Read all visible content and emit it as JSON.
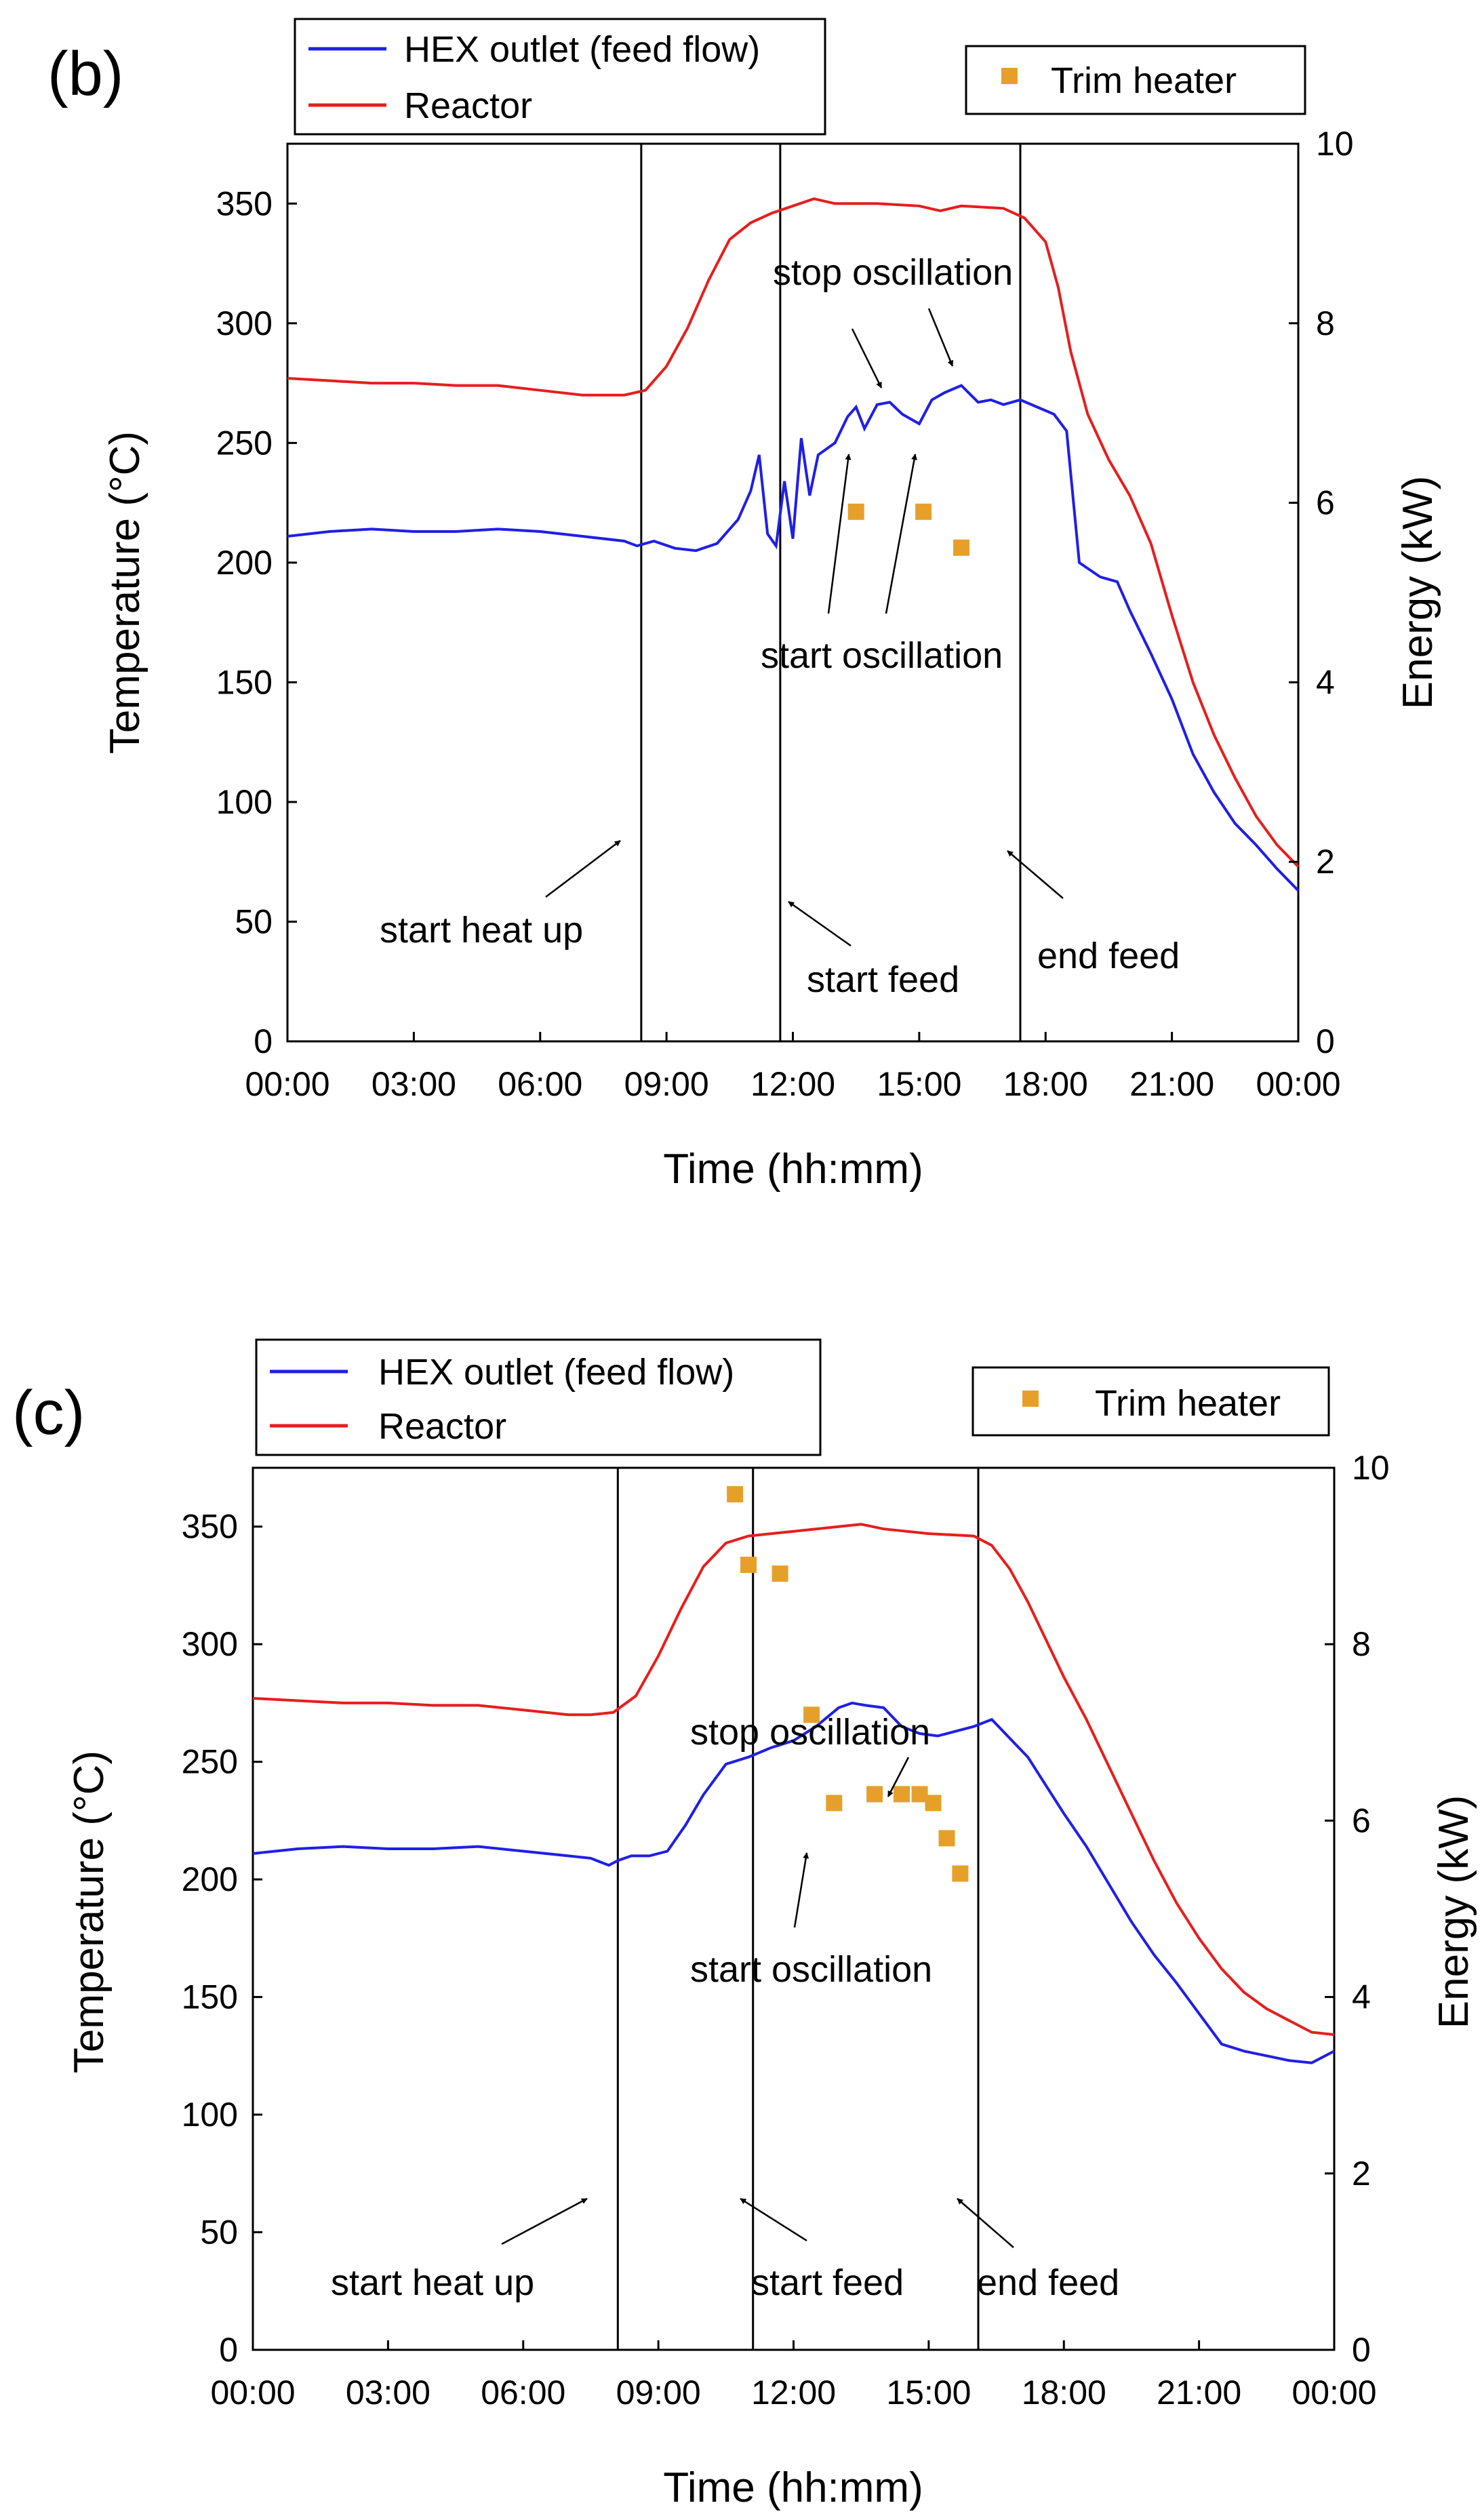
{
  "chart_data": [
    {
      "type": "line",
      "panel_label": "(b)",
      "xlabel": "Time (hh:mm)",
      "ylabel": "Temperature (°C)",
      "y2label": "Energy (kW)",
      "x_unit": "hours",
      "xlim": [
        0,
        24
      ],
      "x_tick_values": [
        0,
        3,
        6,
        9,
        12,
        15,
        18,
        21,
        24
      ],
      "x_tick_labels": [
        "00:00",
        "03:00",
        "06:00",
        "09:00",
        "12:00",
        "15:00",
        "18:00",
        "21:00",
        "00:00"
      ],
      "ylim": [
        0,
        375
      ],
      "y_tick_values": [
        0,
        50,
        100,
        150,
        200,
        250,
        300,
        350
      ],
      "y_tick_labels": [
        "0",
        "50",
        "100",
        "150",
        "200",
        "250",
        "300",
        "350"
      ],
      "y2lim": [
        0,
        10
      ],
      "y2_tick_values": [
        0,
        2,
        4,
        6,
        8,
        10
      ],
      "y2_tick_labels": [
        "0",
        "2",
        "4",
        "6",
        "8",
        "10"
      ],
      "grid": false,
      "legend_position": "top",
      "series": [
        {
          "name": "HEX outlet (feed flow)",
          "color": "#1f1fe6",
          "axis": "left",
          "x": [
            0,
            1,
            2,
            3,
            4,
            5,
            6,
            7,
            8,
            8.3,
            8.7,
            9.2,
            9.7,
            10.2,
            10.7,
            11.0,
            11.2,
            11.4,
            11.6,
            11.8,
            12.0,
            12.2,
            12.4,
            12.6,
            13.0,
            13.3,
            13.5,
            13.7,
            14.0,
            14.3,
            14.6,
            15.0,
            15.3,
            15.6,
            16.0,
            16.4,
            16.7,
            17.0,
            17.4,
            17.8,
            18.2,
            18.5,
            18.8,
            19.3,
            19.7,
            20.0,
            20.5,
            21.0,
            21.5,
            22.0,
            22.5,
            23.0,
            23.5,
            24.0
          ],
          "y": [
            211,
            213,
            214,
            213,
            213,
            214,
            213,
            211,
            209,
            207,
            209,
            206,
            205,
            208,
            218,
            230,
            245,
            212,
            207,
            234,
            210,
            252,
            228,
            245,
            250,
            261,
            265,
            256,
            266,
            267,
            262,
            258,
            268,
            271,
            274,
            267,
            268,
            266,
            268,
            265,
            262,
            255,
            200,
            194,
            192,
            180,
            162,
            143,
            120,
            104,
            91,
            82,
            72,
            63
          ]
        },
        {
          "name": "Reactor",
          "color": "#e61e1e",
          "axis": "left",
          "x": [
            0,
            1,
            2,
            3,
            4,
            5,
            6,
            7,
            8,
            8.5,
            9.0,
            9.5,
            10.0,
            10.5,
            11.0,
            11.5,
            12.0,
            12.5,
            13.0,
            14.0,
            15.0,
            15.5,
            16.0,
            17.0,
            17.5,
            18.0,
            18.3,
            18.6,
            19.0,
            19.5,
            20.0,
            20.5,
            21.0,
            21.5,
            22.0,
            22.5,
            23.0,
            23.5,
            24.0
          ],
          "y": [
            277,
            276,
            275,
            275,
            274,
            274,
            272,
            270,
            270,
            272,
            282,
            298,
            318,
            335,
            342,
            346,
            349,
            352,
            350,
            350,
            349,
            347,
            349,
            348,
            344,
            334,
            315,
            288,
            262,
            243,
            228,
            208,
            178,
            150,
            128,
            110,
            94,
            82,
            73
          ]
        },
        {
          "name": "Trim heater",
          "type": "scatter",
          "marker": "square",
          "color": "#e6a02a",
          "axis": "right",
          "x": [
            13.5,
            15.1,
            16.0
          ],
          "y": [
            5.9,
            5.9,
            5.5
          ]
        }
      ],
      "vertical_lines_x": [
        8.4,
        11.7,
        17.4
      ],
      "annotations": [
        "start heat up",
        "start feed",
        "end feed",
        "stop oscillation",
        "start oscillation"
      ]
    },
    {
      "type": "line",
      "panel_label": "(c)",
      "xlabel": "Time (hh:mm)",
      "ylabel": "Temperature (°C)",
      "y2label": "Energy (kW)",
      "x_unit": "hours",
      "xlim": [
        0,
        24
      ],
      "x_tick_values": [
        0,
        3,
        6,
        9,
        12,
        15,
        18,
        21,
        24
      ],
      "x_tick_labels": [
        "00:00",
        "03:00",
        "06:00",
        "09:00",
        "12:00",
        "15:00",
        "18:00",
        "21:00",
        "00:00"
      ],
      "ylim": [
        0,
        375
      ],
      "y_tick_values": [
        0,
        50,
        100,
        150,
        200,
        250,
        300,
        350
      ],
      "y_tick_labels": [
        "0",
        "50",
        "100",
        "150",
        "200",
        "250",
        "300",
        "350"
      ],
      "y2lim": [
        0,
        10
      ],
      "y2_tick_values": [
        0,
        2,
        4,
        6,
        8,
        10
      ],
      "y2_tick_labels": [
        "0",
        "2",
        "4",
        "6",
        "8",
        "10"
      ],
      "grid": false,
      "legend_position": "top",
      "series": [
        {
          "name": "HEX outlet (feed flow)",
          "color": "#1f1fe6",
          "axis": "left",
          "x": [
            0,
            1,
            2,
            3,
            4,
            5,
            6,
            7,
            7.5,
            7.9,
            8.1,
            8.4,
            8.8,
            9.2,
            9.6,
            10.0,
            10.5,
            11.0,
            11.5,
            12.0,
            12.5,
            13.0,
            13.3,
            13.6,
            14.0,
            14.4,
            14.8,
            15.2,
            15.6,
            16.0,
            16.4,
            16.8,
            17.2,
            17.6,
            18.0,
            18.5,
            19.0,
            19.5,
            20.0,
            20.5,
            21.0,
            21.5,
            22.0,
            22.5,
            23.0,
            23.5,
            24.0
          ],
          "y": [
            211,
            213,
            214,
            213,
            213,
            214,
            212,
            210,
            209,
            206,
            208,
            210,
            210,
            212,
            223,
            236,
            249,
            252,
            256,
            259,
            265,
            273,
            275,
            274,
            273,
            265,
            262,
            261,
            263,
            265,
            268,
            260,
            252,
            240,
            228,
            214,
            198,
            182,
            168,
            156,
            143,
            130,
            127,
            125,
            123,
            122,
            127
          ]
        },
        {
          "name": "Reactor",
          "color": "#e61e1e",
          "axis": "left",
          "x": [
            0,
            1,
            2,
            3,
            4,
            5,
            6,
            7,
            7.5,
            8.0,
            8.5,
            9.0,
            9.5,
            10.0,
            10.5,
            11.0,
            12.0,
            13.0,
            13.5,
            14.0,
            15.0,
            16.0,
            16.4,
            16.8,
            17.2,
            17.6,
            18.0,
            18.5,
            19.0,
            19.5,
            20.0,
            20.5,
            21.0,
            21.5,
            22.0,
            22.5,
            23.0,
            23.5,
            24.0
          ],
          "y": [
            277,
            276,
            275,
            275,
            274,
            274,
            272,
            270,
            270,
            271,
            278,
            295,
            315,
            333,
            343,
            346,
            348,
            350,
            351,
            349,
            347,
            346,
            342,
            332,
            318,
            302,
            286,
            268,
            248,
            228,
            208,
            190,
            175,
            162,
            152,
            145,
            140,
            135,
            134
          ]
        },
        {
          "name": "Trim heater",
          "type": "scatter",
          "marker": "square",
          "color": "#e6a02a",
          "axis": "right",
          "x": [
            10.7,
            11.0,
            11.7,
            12.4,
            12.9,
            13.8,
            14.4,
            14.8,
            15.1,
            15.4,
            15.7
          ],
          "y": [
            9.7,
            8.9,
            8.8,
            7.2,
            6.2,
            6.3,
            6.3,
            6.3,
            6.2,
            5.8,
            5.4
          ]
        }
      ],
      "vertical_lines_x": [
        8.1,
        11.1,
        16.1
      ],
      "annotations": [
        "start heat up",
        "start feed",
        "end feed",
        "stop oscillation",
        "start oscillation"
      ]
    }
  ]
}
